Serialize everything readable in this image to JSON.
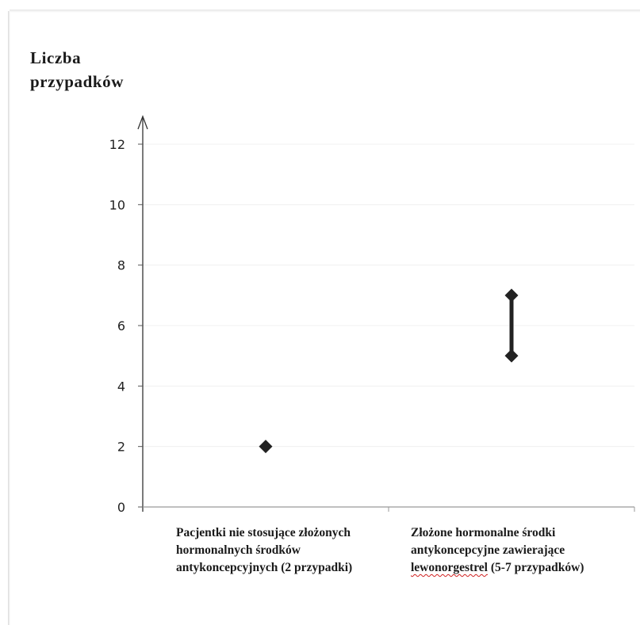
{
  "chart_data": {
    "type": "scatter",
    "title": "",
    "ylabel_lines": [
      "Liczba",
      "przypadków"
    ],
    "xlabel": "",
    "ylim": [
      0,
      12
    ],
    "yticks": [
      0,
      2,
      4,
      6,
      8,
      10,
      12
    ],
    "grid": true,
    "categories": [
      "Pacjentki nie stosujące złożonych hormonalnych środków antykoncepcyjnych (2 przypadki)",
      "Złożone hormonalne środki antykoncepcyjne zawierające lewonorgestrel (5-7 przypadków)"
    ],
    "category_label_main": [
      "Pacjentki nie stosujące złożonych hormonalnych środków antykoncepcyjnych (2 przypadki)",
      "Złożone hormonalne środki antykoncepcyjne zawierające "
    ],
    "category_label_marked": [
      "",
      "lewonorgestrel"
    ],
    "category_label_tail": [
      "",
      " (5-7 przypadków)"
    ],
    "series": [
      {
        "values": [
          {
            "low": 2,
            "high": 2
          },
          {
            "low": 5,
            "high": 7
          }
        ]
      }
    ],
    "marker_color": "#222222"
  }
}
